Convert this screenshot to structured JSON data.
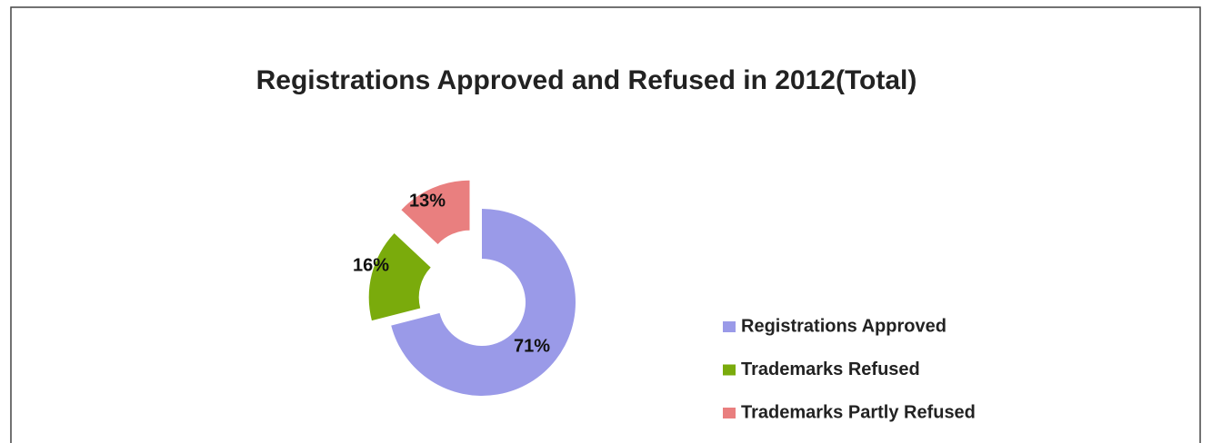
{
  "chart_data": {
    "type": "donut",
    "title": "Registrations Approved and Refused in 2012(Total)",
    "categories": [
      "Registrations Approved",
      "Trademarks Refused",
      "Trademarks Partly Refused"
    ],
    "values": [
      71,
      16,
      13
    ],
    "value_labels": [
      "71%",
      "16%",
      "13%"
    ],
    "colors": [
      "#9a9ae8",
      "#7aab0c",
      "#e97f7f"
    ],
    "legend": "right"
  }
}
